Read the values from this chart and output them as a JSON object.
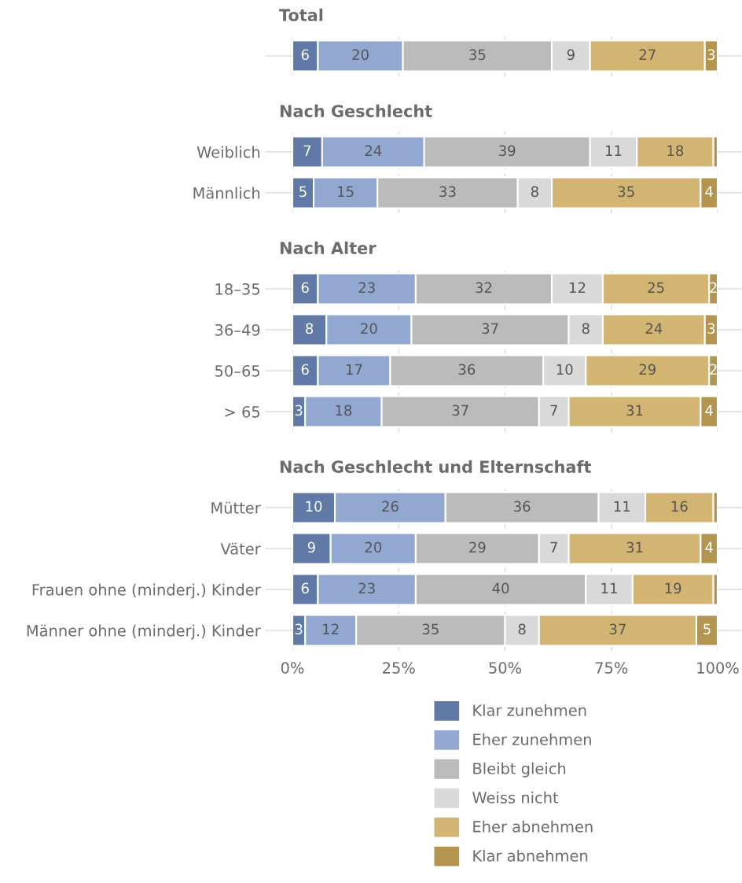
{
  "chart_data": [
    {
      "type": "bar",
      "title": "Total",
      "orientation": "horizontal",
      "stacked": true,
      "categories": [
        null
      ],
      "xlim": [
        0,
        100
      ],
      "xticks": [
        0,
        25,
        50,
        75,
        100
      ],
      "tick_labels": false,
      "grid": "x",
      "series": [
        {
          "color": "#6079a6",
          "values": [
            6
          ],
          "value_labels": [
            "6"
          ]
        },
        {
          "color": "#92a8d0",
          "values": [
            20
          ],
          "value_labels": [
            "20"
          ]
        },
        {
          "color": "#bbbbbb",
          "values": [
            35
          ],
          "value_labels": [
            "35"
          ]
        },
        {
          "color": "#d9d9d9",
          "values": [
            9
          ],
          "value_labels": [
            "9"
          ]
        },
        {
          "color": "#d2b473",
          "values": [
            27
          ],
          "value_labels": [
            "27"
          ]
        },
        {
          "color": "#b3954f",
          "values": [
            3
          ],
          "value_labels": [
            "3"
          ]
        }
      ]
    },
    {
      "type": "bar",
      "title": "Nach Geschlecht",
      "orientation": "horizontal",
      "stacked": true,
      "categories": [
        "Weiblich",
        "Männlich"
      ],
      "xlim": [
        0,
        100
      ],
      "xticks": [
        0,
        25,
        50,
        75,
        100
      ],
      "tick_labels": "y",
      "grid": "x",
      "series": [
        {
          "color": "#6079a6",
          "values": [
            7,
            5
          ],
          "value_labels": [
            "7",
            "5"
          ]
        },
        {
          "color": "#92a8d0",
          "values": [
            24,
            15
          ],
          "value_labels": [
            "24",
            "15"
          ]
        },
        {
          "color": "#bbbbbb",
          "values": [
            39,
            33
          ],
          "value_labels": [
            "39",
            "33"
          ]
        },
        {
          "color": "#d9d9d9",
          "values": [
            11,
            8
          ],
          "value_labels": [
            "11",
            "8"
          ]
        },
        {
          "color": "#d2b473",
          "values": [
            18,
            35
          ],
          "value_labels": [
            "18",
            "35"
          ]
        },
        {
          "color": "#b3954f",
          "values": [
            1,
            4
          ],
          "value_labels": [
            null,
            "4"
          ]
        }
      ]
    },
    {
      "type": "bar",
      "title": "Nach Alter",
      "orientation": "horizontal",
      "stacked": true,
      "categories": [
        "18–35",
        "36–49",
        "50–65",
        "> 65"
      ],
      "xlim": [
        0,
        100
      ],
      "xticks": [
        0,
        25,
        50,
        75,
        100
      ],
      "tick_labels": "y",
      "grid": "x",
      "series": [
        {
          "color": "#6079a6",
          "values": [
            6,
            8,
            6,
            3
          ],
          "value_labels": [
            "6",
            "8",
            "6",
            "3"
          ]
        },
        {
          "color": "#92a8d0",
          "values": [
            23,
            20,
            17,
            18
          ],
          "value_labels": [
            "23",
            "20",
            "17",
            "18"
          ]
        },
        {
          "color": "#bbbbbb",
          "values": [
            32,
            37,
            36,
            37
          ],
          "value_labels": [
            "32",
            "37",
            "36",
            "37"
          ]
        },
        {
          "color": "#d9d9d9",
          "values": [
            12,
            8,
            10,
            7
          ],
          "value_labels": [
            "12",
            "8",
            "10",
            "7"
          ]
        },
        {
          "color": "#d2b473",
          "values": [
            25,
            24,
            29,
            31
          ],
          "value_labels": [
            "25",
            "24",
            "29",
            "31"
          ]
        },
        {
          "color": "#b3954f",
          "values": [
            2,
            3,
            2,
            4
          ],
          "value_labels": [
            "2",
            "3",
            "2",
            "4"
          ]
        }
      ]
    },
    {
      "type": "bar",
      "title": "Nach Geschlecht und Elternschaft",
      "orientation": "horizontal",
      "stacked": true,
      "categories": [
        "Mütter",
        "Väter",
        "Frauen ohne (minderj.) Kinder",
        "Männer ohne (minderj.) Kinder"
      ],
      "xlim": [
        0,
        100
      ],
      "xticks": [
        {
          "value": 0,
          "label": "0%"
        },
        {
          "value": 25,
          "label": "25%"
        },
        {
          "value": 50,
          "label": "50%"
        },
        {
          "value": 75,
          "label": "75%"
        },
        {
          "value": 100,
          "label": "100%"
        }
      ],
      "grid": "x",
      "legend": "bottom",
      "series": [
        {
          "name": "Klar zunehmen",
          "color": "#6079a6",
          "values": [
            10,
            9,
            6,
            3
          ],
          "value_labels": [
            "10",
            "9",
            "6",
            "3"
          ]
        },
        {
          "name": "Eher zunehmen",
          "color": "#92a8d0",
          "values": [
            26,
            20,
            23,
            12
          ],
          "value_labels": [
            "26",
            "20",
            "23",
            "12"
          ]
        },
        {
          "name": "Bleibt gleich",
          "color": "#bbbbbb",
          "values": [
            36,
            29,
            40,
            35
          ],
          "value_labels": [
            "36",
            "29",
            "40",
            "35"
          ]
        },
        {
          "name": "Weiss nicht",
          "color": "#d9d9d9",
          "values": [
            11,
            7,
            11,
            8
          ],
          "value_labels": [
            "11",
            "7",
            "11",
            "8"
          ]
        },
        {
          "name": "Eher abnehmen",
          "color": "#d2b473",
          "values": [
            16,
            31,
            19,
            37
          ],
          "value_labels": [
            "16",
            "31",
            "19",
            "37"
          ]
        },
        {
          "name": "Klar abnehmen",
          "color": "#b3954f",
          "values": [
            1,
            4,
            1,
            5
          ],
          "value_labels": [
            null,
            "4",
            null,
            "5"
          ]
        }
      ]
    }
  ]
}
